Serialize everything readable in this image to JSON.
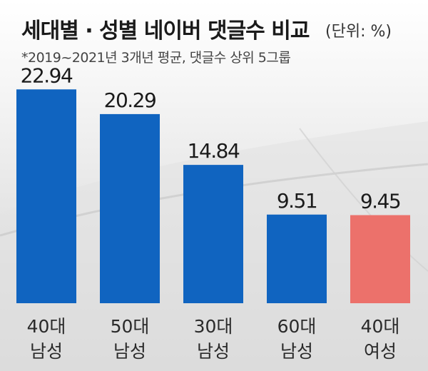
{
  "title": "세대별 · 성별 네이버 댓글수 비교",
  "unit": "(단위: %)",
  "subtitle": "*2019~2021년 3개년 평균, 댓글수 상위 5그룹",
  "colors": {
    "male": "#1064c0",
    "female": "#ec716b"
  },
  "chart_data": {
    "type": "bar",
    "title": "세대별 · 성별 네이버 댓글수 비교",
    "subtitle": "*2019~2021년 3개년 평균, 댓글수 상위 5그룹",
    "xlabel": "",
    "ylabel": "",
    "unit": "(단위: %)",
    "ylim": [
      0,
      25
    ],
    "grid": false,
    "categories": [
      {
        "age": "40대",
        "gender": "남성"
      },
      {
        "age": "50대",
        "gender": "남성"
      },
      {
        "age": "30대",
        "gender": "남성"
      },
      {
        "age": "60대",
        "gender": "남성"
      },
      {
        "age": "40대",
        "gender": "여성"
      }
    ],
    "values": [
      22.94,
      20.29,
      14.84,
      9.51,
      9.45
    ],
    "value_labels": [
      "22.94",
      "20.29",
      "14.84",
      "9.51",
      "9.45"
    ],
    "bar_colors": [
      "#1064c0",
      "#1064c0",
      "#1064c0",
      "#1064c0",
      "#ec716b"
    ]
  }
}
